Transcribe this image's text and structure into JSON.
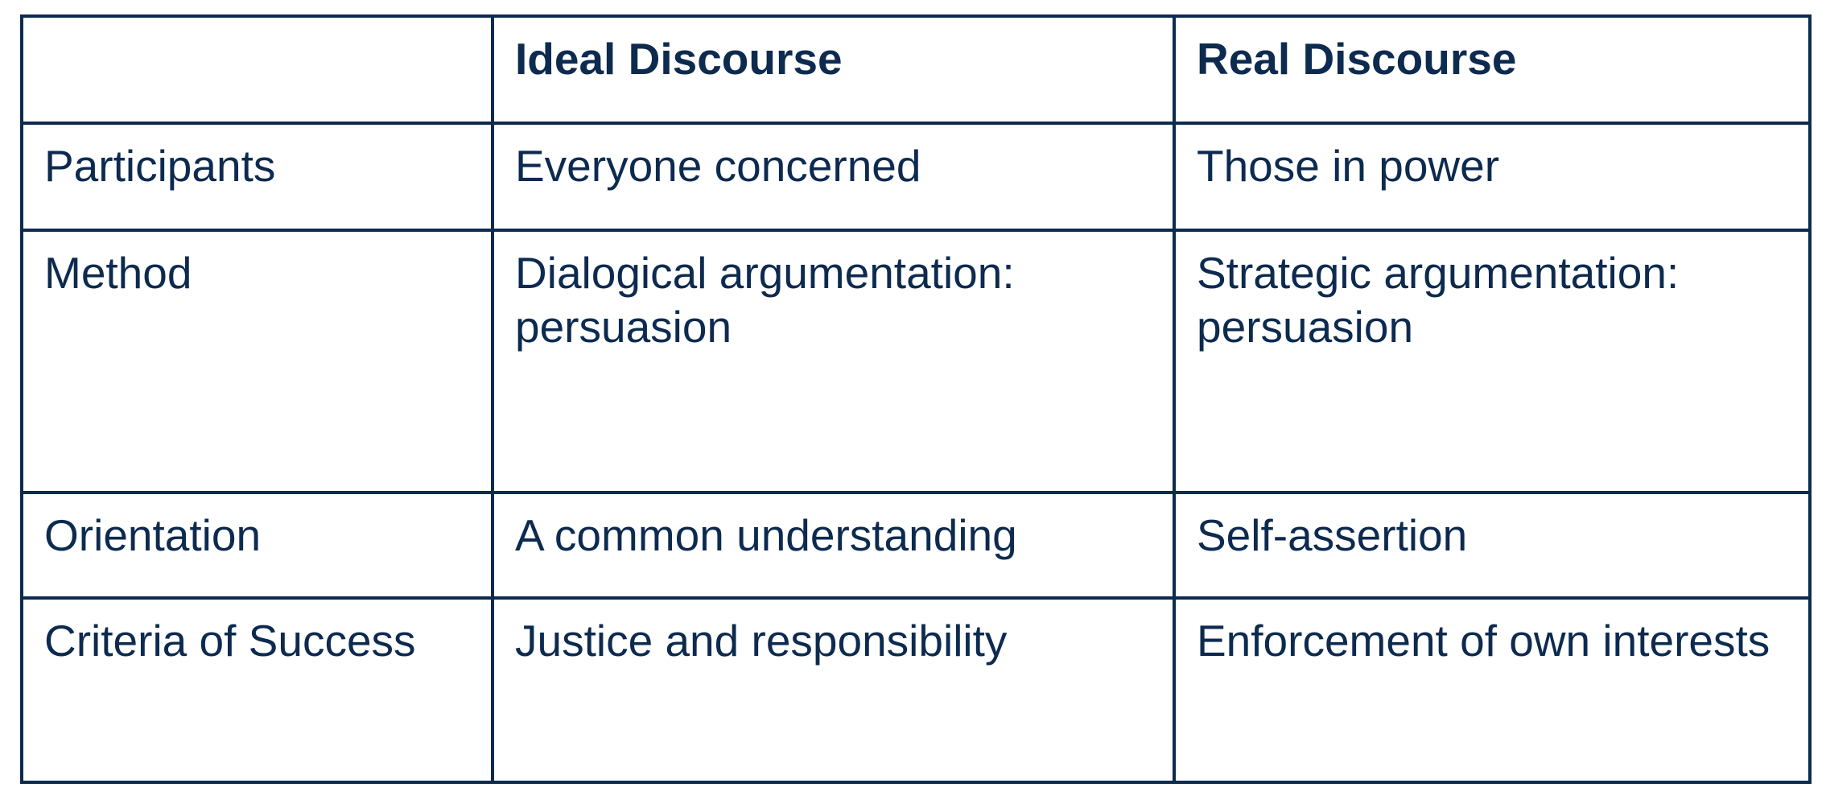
{
  "table": {
    "headers": [
      "",
      "Ideal Discourse",
      "Real Discourse"
    ],
    "rows": [
      [
        "Participants",
        "Everyone concerned",
        "Those in power"
      ],
      [
        "Method",
        "Dialogical argumentation: persuasion",
        "Strategic argumentation: persuasion"
      ],
      [
        "Orientation",
        "A common understanding",
        "Self-assertion"
      ],
      [
        "Criteria of Success",
        "Justice and responsibility",
        "Enforcement of own interests"
      ]
    ]
  },
  "colors": {
    "text": "#0d2a4f",
    "border": "#0d2a4f",
    "background": "#ffffff"
  }
}
